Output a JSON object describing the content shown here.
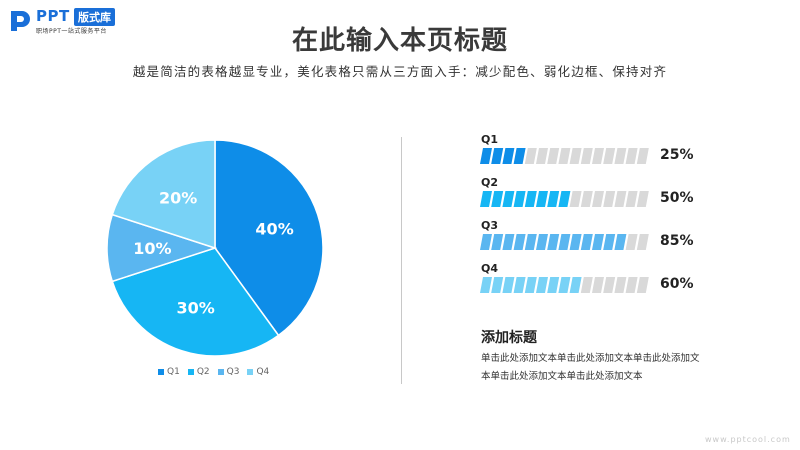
{
  "logo": {
    "ppt": "PPT",
    "badge": "版式库",
    "sub": "职场PPT一站式服务平台"
  },
  "title": "在此输入本页标题",
  "subtitle": "越是简洁的表格越显专业，美化表格只需从三方面入手：减少配色、弱化边框、保持对齐",
  "colors": {
    "q1": "#0e8de8",
    "q2": "#16b6f4",
    "q3": "#5ab6f0",
    "q4": "#78d2f6",
    "track": "#d9d9d9"
  },
  "chart_data": [
    {
      "type": "pie",
      "categories": [
        "Q1",
        "Q2",
        "Q3",
        "Q4"
      ],
      "values": [
        40,
        30,
        10,
        20
      ],
      "labels": [
        "40%",
        "30%",
        "10%",
        "20%"
      ],
      "legend": [
        "Q1",
        "Q2",
        "Q3",
        "Q4"
      ],
      "legend_position": "bottom"
    },
    {
      "type": "bar",
      "orientation": "horizontal",
      "categories": [
        "Q1",
        "Q2",
        "Q3",
        "Q4"
      ],
      "values": [
        25,
        50,
        85,
        60
      ],
      "labels": [
        "25%",
        "50%",
        "85%",
        "60%"
      ],
      "xlim": [
        0,
        100
      ]
    }
  ],
  "side": {
    "title": "添加标题",
    "body_line1": "单击此处添加文本单击此处添加文本单击此处添加文",
    "body_line2": "本单击此处添加文本单击此处添加文本"
  },
  "watermark": "www.pptcool.com",
  "icons": {
    "logo": "ppt-logo-icon"
  }
}
